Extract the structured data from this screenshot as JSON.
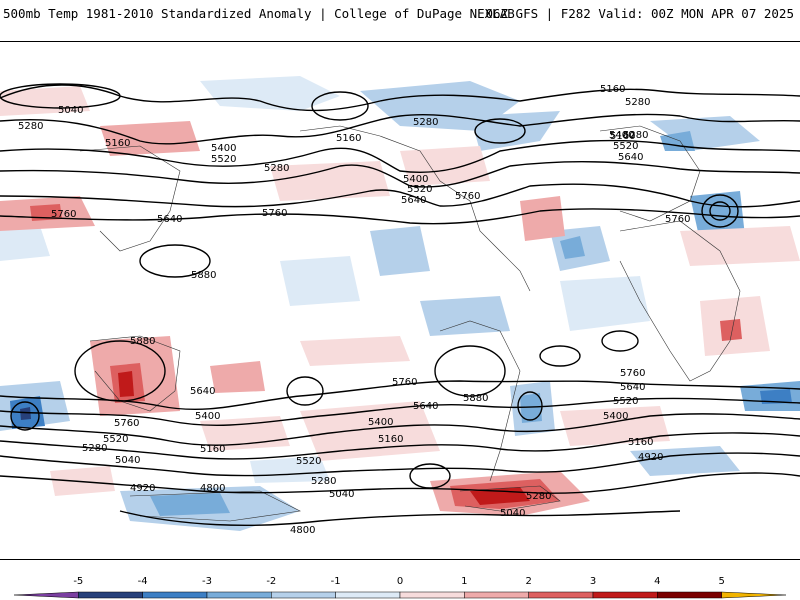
{
  "header": {
    "title": "500mb Temp 1981-2010 Standardized Anomaly | College of DuPage NEXLAB",
    "run_info": "06Z GFS | F282 Valid: 00Z MON APR 07 2025"
  },
  "colorbar": {
    "ticks": [
      "-5",
      "-4",
      "-3",
      "-2",
      "-1",
      "0",
      "1",
      "2",
      "3",
      "4",
      "5"
    ],
    "colors": [
      "#7b3fa1",
      "#27407a",
      "#3d7fc4",
      "#78acd9",
      "#b5d0ea",
      "#ddeaf6",
      "#f7dcdc",
      "#eeaaaa",
      "#dd6060",
      "#c01a1a",
      "#7a0000",
      "#f2b400"
    ]
  },
  "contour_labels": [
    "5160",
    "5280",
    "5040",
    "5280",
    "5160",
    "5400",
    "5520",
    "5160",
    "5280",
    "5280",
    "5400",
    "5520",
    "5640",
    "5760",
    "5760",
    "5640",
    "5760",
    "5880",
    "5880",
    "5760",
    "5640",
    "5400",
    "5520",
    "5280",
    "5040",
    "5160",
    "4920",
    "4800",
    "4800",
    "5520",
    "5280",
    "5040",
    "5400",
    "5160",
    "5760",
    "5640",
    "5880",
    "5280",
    "5040",
    "5760",
    "5640",
    "5520",
    "5400",
    "5160",
    "4920",
    "5160",
    "5280",
    "5400",
    "5520",
    "5640",
    "5760"
  ]
}
